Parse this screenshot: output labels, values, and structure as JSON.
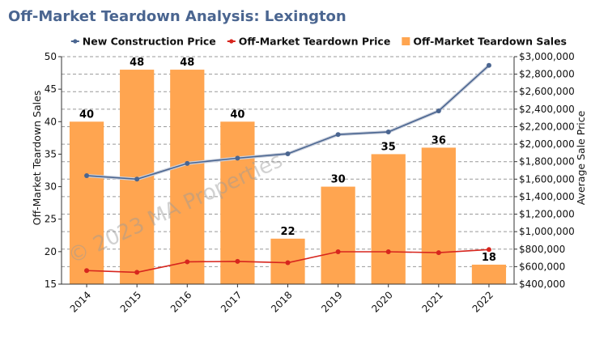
{
  "chart_data": {
    "type": "bar",
    "title": "Off-Market Teardown Analysis: Lexington",
    "watermark": "© 2023 MA Properties",
    "categories": [
      "2014",
      "2015",
      "2016",
      "2017",
      "2018",
      "2019",
      "2020",
      "2021",
      "2022"
    ],
    "series": [
      {
        "name": "New Construction Price",
        "type": "line",
        "axis": "right",
        "color": "#4a6590",
        "values": [
          1640000,
          1600000,
          1780000,
          1840000,
          1890000,
          2110000,
          2140000,
          2380000,
          2900000
        ]
      },
      {
        "name": "Off-Market Teardown Price",
        "type": "line",
        "axis": "right",
        "color": "#d7261e",
        "values": [
          555000,
          535000,
          655000,
          660000,
          645000,
          770000,
          770000,
          760000,
          795000
        ]
      },
      {
        "name": "Off-Market Teardown Sales",
        "type": "bar",
        "axis": "left",
        "color": "#ffa550",
        "values": [
          40,
          48,
          48,
          40,
          22,
          30,
          35,
          36,
          18
        ]
      }
    ],
    "xlabel": "",
    "ylabel": "Off-Market Teardown Sales",
    "y2label": "Average Sale Price",
    "ylim": [
      15,
      50
    ],
    "yticks": [
      "15",
      "20",
      "25",
      "30",
      "35",
      "40",
      "45",
      "50"
    ],
    "y2lim": [
      400000,
      3000000
    ],
    "y2ticks": [
      "$400,000",
      "$600,000",
      "$800,000",
      "$1,000,000",
      "$1,200,000",
      "$1,400,000",
      "$1,600,000",
      "$1,800,000",
      "$2,000,000",
      "$2,200,000",
      "$2,400,000",
      "$2,600,000",
      "$2,800,000",
      "$3,000,000"
    ],
    "grid": true,
    "legend_position": "top-right",
    "title_color": "#4a6590"
  }
}
